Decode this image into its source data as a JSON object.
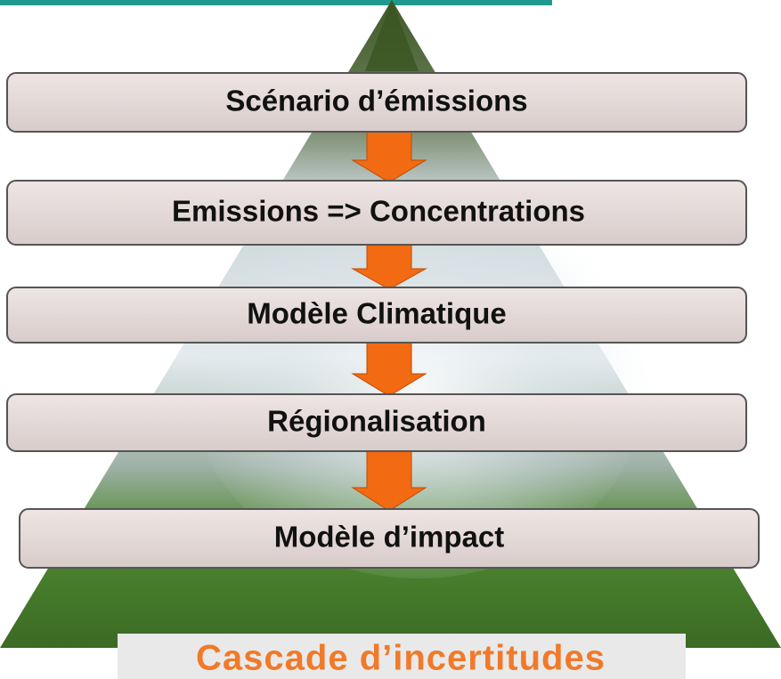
{
  "boxes": [
    {
      "label": "Scénario d’émissions"
    },
    {
      "label": "Emissions => Concentrations"
    },
    {
      "label": "Modèle Climatique"
    },
    {
      "label": "Régionalisation"
    },
    {
      "label": "Modèle d’impact"
    }
  ],
  "caption": "Cascade d’incertitudes"
}
